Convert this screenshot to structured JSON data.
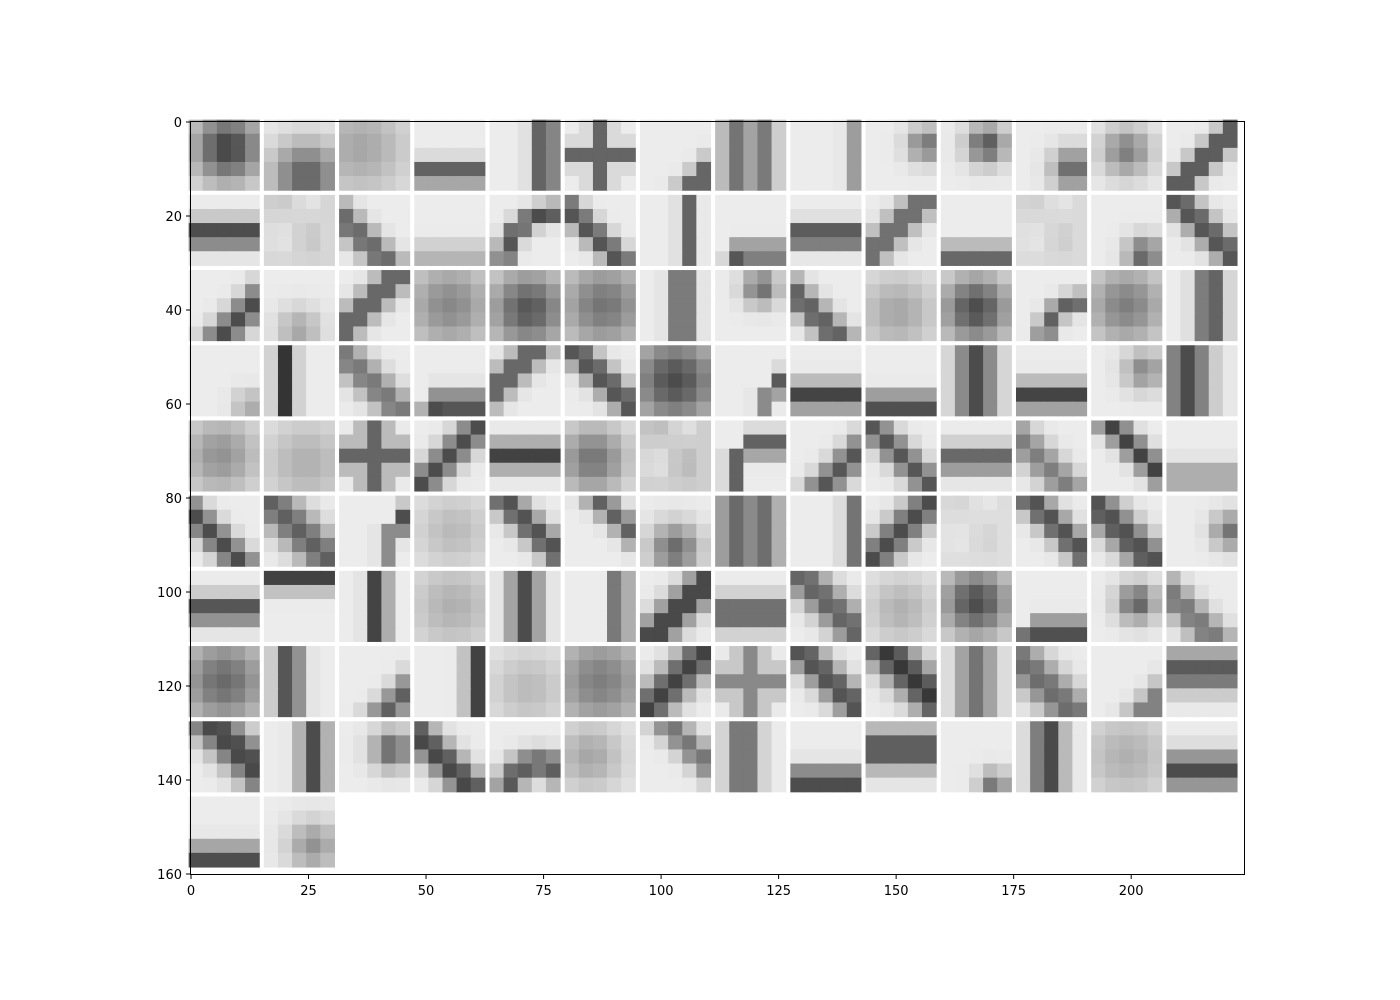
{
  "chart_data": {
    "type": "heatmap",
    "title": "",
    "xlabel": "",
    "ylabel": "",
    "xlim": [
      0,
      224
    ],
    "ylim": [
      160,
      0
    ],
    "xticks": [
      "0",
      "25",
      "50",
      "75",
      "100",
      "125",
      "150",
      "175",
      "200"
    ],
    "yticks": [
      "0",
      "20",
      "40",
      "60",
      "80",
      "100",
      "120",
      "140",
      "160"
    ],
    "grid": false,
    "colormap": "gray_r",
    "grid_layout": {
      "rows": 10,
      "cols": 14,
      "patch_size": 15,
      "spacing": 1
    },
    "patch_count": 128,
    "patches": [
      {
        "kind": "blob",
        "cx": 0.55,
        "cy": 0.4,
        "r": 0.35,
        "s": 0.85
      },
      {
        "kind": "blob",
        "cx": 0.6,
        "cy": 0.8,
        "r": 0.35,
        "s": 0.7
      },
      {
        "kind": "blob",
        "cx": 0.3,
        "cy": 0.4,
        "r": 0.5,
        "s": 0.35
      },
      {
        "kind": "hbar",
        "p": 0.75,
        "w": 0.12,
        "s": 0.75
      },
      {
        "kind": "vbar",
        "p": 0.78,
        "w": 0.12,
        "s": 0.85
      },
      {
        "kind": "cross",
        "p": 0.5,
        "w": 0.1,
        "s": 0.75
      },
      {
        "kind": "diag",
        "dir": 1,
        "p": 0.85,
        "w": 0.12,
        "s": 0.8
      },
      {
        "kind": "stripes",
        "w": 0.15,
        "s": 0.6
      },
      {
        "kind": "vbar",
        "p": 0.95,
        "w": 0.1,
        "s": 0.45
      },
      {
        "kind": "blob",
        "cx": 0.85,
        "cy": 0.35,
        "r": 0.18,
        "s": 0.6
      },
      {
        "kind": "blob",
        "cx": 0.65,
        "cy": 0.35,
        "r": 0.2,
        "s": 0.75
      },
      {
        "kind": "blob",
        "cx": 0.8,
        "cy": 0.7,
        "r": 0.2,
        "s": 0.7
      },
      {
        "kind": "blob",
        "cx": 0.5,
        "cy": 0.45,
        "r": 0.25,
        "s": 0.55
      },
      {
        "kind": "diag",
        "dir": 1,
        "p": 0.55,
        "w": 0.12,
        "s": 0.85
      },
      {
        "kind": "hbar",
        "p": 0.55,
        "w": 0.14,
        "s": 0.85
      },
      {
        "kind": "flat",
        "s": 0.18
      },
      {
        "kind": "diag",
        "dir": -1,
        "p": 0.3,
        "w": 0.14,
        "s": 0.7
      },
      {
        "kind": "hbar",
        "p": 0.85,
        "w": 0.12,
        "s": 0.3
      },
      {
        "kind": "arc",
        "cx": 0.95,
        "cy": 1.0,
        "r": 0.75,
        "w": 0.1,
        "s": 0.8
      },
      {
        "kind": "diag",
        "dir": -1,
        "p": 0.4,
        "w": 0.12,
        "s": 0.8
      },
      {
        "kind": "vbar",
        "p": 0.68,
        "w": 0.08,
        "s": 0.7
      },
      {
        "kind": "corner",
        "x": 0.3,
        "y": 0.82,
        "w": 0.1,
        "s": 0.75
      },
      {
        "kind": "hbar",
        "p": 0.58,
        "w": 0.12,
        "s": 0.9
      },
      {
        "kind": "diag",
        "dir": 1,
        "p": 0.45,
        "w": 0.14,
        "s": 0.7
      },
      {
        "kind": "hbar",
        "p": 0.85,
        "w": 0.1,
        "s": 0.75
      },
      {
        "kind": "flat",
        "s": 0.15
      },
      {
        "kind": "blob",
        "cx": 0.75,
        "cy": 0.85,
        "r": 0.18,
        "s": 0.7
      },
      {
        "kind": "diag",
        "dir": -1,
        "p": 0.55,
        "w": 0.14,
        "s": 0.8
      },
      {
        "kind": "diag",
        "dir": 1,
        "p": 0.7,
        "w": 0.14,
        "s": 0.8
      },
      {
        "kind": "blob",
        "cx": 0.5,
        "cy": 0.85,
        "r": 0.22,
        "s": 0.35
      },
      {
        "kind": "diag",
        "dir": 1,
        "p": 0.45,
        "w": 0.14,
        "s": 0.75
      },
      {
        "kind": "blob",
        "cx": 0.5,
        "cy": 0.5,
        "r": 0.45,
        "s": 0.5
      },
      {
        "kind": "blob",
        "cx": 0.55,
        "cy": 0.55,
        "r": 0.4,
        "s": 0.75
      },
      {
        "kind": "blob",
        "cx": 0.55,
        "cy": 0.5,
        "r": 0.45,
        "s": 0.6
      },
      {
        "kind": "vbar",
        "p": 0.6,
        "w": 0.12,
        "s": 0.8
      },
      {
        "kind": "blob",
        "cx": 0.65,
        "cy": 0.25,
        "r": 0.18,
        "s": 0.65
      },
      {
        "kind": "diag",
        "dir": -1,
        "p": 0.3,
        "w": 0.14,
        "s": 0.75
      },
      {
        "kind": "blob",
        "cx": 0.45,
        "cy": 0.6,
        "r": 0.4,
        "s": 0.35
      },
      {
        "kind": "blob",
        "cx": 0.5,
        "cy": 0.55,
        "r": 0.35,
        "s": 0.8
      },
      {
        "kind": "arc",
        "cx": 0.95,
        "cy": 1.0,
        "r": 0.55,
        "w": 0.1,
        "s": 0.7
      },
      {
        "kind": "blob",
        "cx": 0.5,
        "cy": 0.5,
        "r": 0.4,
        "s": 0.55
      },
      {
        "kind": "vbar",
        "p": 0.62,
        "w": 0.14,
        "s": 0.8
      },
      {
        "kind": "blob",
        "cx": 0.85,
        "cy": 0.85,
        "r": 0.15,
        "s": 0.35
      },
      {
        "kind": "vbar",
        "p": 0.3,
        "w": 0.1,
        "s": 0.95
      },
      {
        "kind": "diag",
        "dir": -1,
        "p": 0.45,
        "w": 0.16,
        "s": 0.6
      },
      {
        "kind": "corner",
        "x": 0.3,
        "y": 0.85,
        "w": 0.14,
        "s": 0.8
      },
      {
        "kind": "diag",
        "dir": 1,
        "p": 0.35,
        "w": 0.14,
        "s": 0.75
      },
      {
        "kind": "diag",
        "dir": -1,
        "p": 0.55,
        "w": 0.14,
        "s": 0.8
      },
      {
        "kind": "blob",
        "cx": 0.5,
        "cy": 0.5,
        "r": 0.45,
        "s": 0.8
      },
      {
        "kind": "corner",
        "x": 0.82,
        "y": 0.55,
        "w": 0.12,
        "s": 0.8
      },
      {
        "kind": "hbar",
        "p": 0.72,
        "w": 0.14,
        "s": 0.85
      },
      {
        "kind": "hbar",
        "p": 0.85,
        "w": 0.12,
        "s": 0.85
      },
      {
        "kind": "vbar",
        "p": 0.5,
        "w": 0.2,
        "s": 0.8
      },
      {
        "kind": "hbar",
        "p": 0.72,
        "w": 0.14,
        "s": 0.85
      },
      {
        "kind": "blob",
        "cx": 0.75,
        "cy": 0.35,
        "r": 0.2,
        "s": 0.5
      },
      {
        "kind": "vbar",
        "p": 0.3,
        "w": 0.22,
        "s": 0.8
      },
      {
        "kind": "blob",
        "cx": 0.45,
        "cy": 0.5,
        "r": 0.4,
        "s": 0.45
      },
      {
        "kind": "blob",
        "cx": 0.6,
        "cy": 0.6,
        "r": 0.45,
        "s": 0.3
      },
      {
        "kind": "cross",
        "p": 0.5,
        "w": 0.14,
        "s": 0.75
      },
      {
        "kind": "diag",
        "dir": 1,
        "p": 0.5,
        "w": 0.14,
        "s": 0.8
      },
      {
        "kind": "hbar",
        "p": 0.5,
        "w": 0.14,
        "s": 0.85
      },
      {
        "kind": "blob",
        "cx": 0.4,
        "cy": 0.55,
        "r": 0.35,
        "s": 0.6
      },
      {
        "kind": "flat",
        "s": 0.25
      },
      {
        "kind": "corner",
        "x": 0.35,
        "y": 0.35,
        "w": 0.12,
        "s": 0.75
      },
      {
        "kind": "diag",
        "dir": 1,
        "p": 0.7,
        "w": 0.14,
        "s": 0.75
      },
      {
        "kind": "diag",
        "dir": -1,
        "p": 0.5,
        "w": 0.14,
        "s": 0.75
      },
      {
        "kind": "hbar",
        "p": 0.55,
        "w": 0.14,
        "s": 0.7
      },
      {
        "kind": "diag",
        "dir": -1,
        "p": 0.35,
        "w": 0.16,
        "s": 0.55
      },
      {
        "kind": "diag",
        "dir": -1,
        "p": 0.65,
        "w": 0.12,
        "s": 0.85
      },
      {
        "kind": "hbar",
        "p": 0.8,
        "w": 0.14,
        "s": 0.4
      },
      {
        "kind": "diag",
        "dir": -1,
        "p": 0.35,
        "w": 0.14,
        "s": 0.8
      },
      {
        "kind": "diag",
        "dir": -1,
        "p": 0.5,
        "w": 0.2,
        "s": 0.7
      },
      {
        "kind": "corner",
        "x": 0.85,
        "y": 0.35,
        "w": 0.14,
        "s": 0.85
      },
      {
        "kind": "blob",
        "cx": 0.55,
        "cy": 0.5,
        "r": 0.4,
        "s": 0.25
      },
      {
        "kind": "diag",
        "dir": -1,
        "p": 0.6,
        "w": 0.14,
        "s": 0.8
      },
      {
        "kind": "diag",
        "dir": -1,
        "p": 0.8,
        "w": 0.12,
        "s": 0.7
      },
      {
        "kind": "blob",
        "cx": 0.5,
        "cy": 0.75,
        "r": 0.25,
        "s": 0.65
      },
      {
        "kind": "stripes",
        "w": 0.2,
        "s": 0.65
      },
      {
        "kind": "vbar",
        "p": 0.9,
        "w": 0.1,
        "s": 0.6
      },
      {
        "kind": "diag",
        "dir": 1,
        "p": 0.5,
        "w": 0.16,
        "s": 0.8
      },
      {
        "kind": "flat",
        "s": 0.12
      },
      {
        "kind": "diag",
        "dir": -1,
        "p": 0.6,
        "w": 0.14,
        "s": 0.8
      },
      {
        "kind": "diag",
        "dir": -1,
        "p": 0.45,
        "w": 0.18,
        "s": 0.8
      },
      {
        "kind": "blob",
        "cx": 0.9,
        "cy": 0.5,
        "r": 0.18,
        "s": 0.6
      },
      {
        "kind": "hbar",
        "p": 0.55,
        "w": 0.14,
        "s": 0.8
      },
      {
        "kind": "hbar",
        "p": 0.1,
        "w": 0.12,
        "s": 0.85
      },
      {
        "kind": "vbar",
        "p": 0.55,
        "w": 0.1,
        "s": 0.95
      },
      {
        "kind": "blob",
        "cx": 0.55,
        "cy": 0.5,
        "r": 0.45,
        "s": 0.3
      },
      {
        "kind": "vbar",
        "p": 0.5,
        "w": 0.16,
        "s": 0.8
      },
      {
        "kind": "vbar",
        "p": 0.78,
        "w": 0.08,
        "s": 0.95
      },
      {
        "kind": "diag",
        "dir": 1,
        "p": 0.55,
        "w": 0.16,
        "s": 0.9
      },
      {
        "kind": "hbar",
        "p": 0.6,
        "w": 0.16,
        "s": 0.75
      },
      {
        "kind": "diag",
        "dir": -1,
        "p": 0.55,
        "w": 0.18,
        "s": 0.7
      },
      {
        "kind": "blob",
        "cx": 0.5,
        "cy": 0.55,
        "r": 0.35,
        "s": 0.3
      },
      {
        "kind": "blob",
        "cx": 0.5,
        "cy": 0.45,
        "r": 0.35,
        "s": 0.8
      },
      {
        "kind": "corner",
        "x": 0.2,
        "y": 0.85,
        "w": 0.12,
        "s": 0.85
      },
      {
        "kind": "blob",
        "cx": 0.65,
        "cy": 0.45,
        "r": 0.2,
        "s": 0.7
      },
      {
        "kind": "diag",
        "dir": -1,
        "p": 0.3,
        "w": 0.16,
        "s": 0.6
      },
      {
        "kind": "blob",
        "cx": 0.5,
        "cy": 0.5,
        "r": 0.45,
        "s": 0.65
      },
      {
        "kind": "vbar",
        "p": 0.35,
        "w": 0.14,
        "s": 0.8
      },
      {
        "kind": "diag",
        "dir": 1,
        "p": 0.8,
        "w": 0.14,
        "s": 0.7
      },
      {
        "kind": "corner",
        "x": 0.9,
        "y": 0.15,
        "w": 0.12,
        "s": 0.85
      },
      {
        "kind": "blob",
        "cx": 0.55,
        "cy": 0.6,
        "r": 0.4,
        "s": 0.25
      },
      {
        "kind": "blob",
        "cx": 0.5,
        "cy": 0.5,
        "r": 0.5,
        "s": 0.55
      },
      {
        "kind": "diag",
        "dir": 1,
        "p": 0.5,
        "w": 0.18,
        "s": 0.85
      },
      {
        "kind": "cross",
        "p": 0.5,
        "w": 0.14,
        "s": 0.55
      },
      {
        "kind": "diag",
        "dir": -1,
        "p": 0.55,
        "w": 0.16,
        "s": 0.8
      },
      {
        "kind": "diag",
        "dir": -1,
        "p": 0.65,
        "w": 0.2,
        "s": 0.9
      },
      {
        "kind": "vbar",
        "p": 0.5,
        "w": 0.2,
        "s": 0.6
      },
      {
        "kind": "diag",
        "dir": -1,
        "p": 0.4,
        "w": 0.2,
        "s": 0.65
      },
      {
        "kind": "diag",
        "dir": 1,
        "p": 0.85,
        "w": 0.14,
        "s": 0.6
      },
      {
        "kind": "hbar",
        "p": 0.35,
        "w": 0.2,
        "s": 0.75
      },
      {
        "kind": "diag",
        "dir": -1,
        "p": 0.7,
        "w": 0.2,
        "s": 0.85
      },
      {
        "kind": "vbar",
        "p": 0.7,
        "w": 0.14,
        "s": 0.8
      },
      {
        "kind": "blob",
        "cx": 0.75,
        "cy": 0.4,
        "r": 0.2,
        "s": 0.7
      },
      {
        "kind": "diag",
        "dir": -1,
        "p": 0.4,
        "w": 0.16,
        "s": 0.85
      },
      {
        "kind": "arc",
        "cx": 0.7,
        "cy": 1.05,
        "r": 0.45,
        "w": 0.14,
        "s": 0.75
      },
      {
        "kind": "blob",
        "cx": 0.35,
        "cy": 0.5,
        "r": 0.35,
        "s": 0.35
      },
      {
        "kind": "diag",
        "dir": -1,
        "p": 0.75,
        "w": 0.14,
        "s": 0.6
      },
      {
        "kind": "vbar",
        "p": 0.4,
        "w": 0.16,
        "s": 0.7
      },
      {
        "kind": "hbar",
        "p": 0.85,
        "w": 0.14,
        "s": 0.85
      },
      {
        "kind": "hbar",
        "p": 0.4,
        "w": 0.2,
        "s": 0.8
      },
      {
        "kind": "blob",
        "cx": 0.75,
        "cy": 0.9,
        "r": 0.15,
        "s": 0.6
      },
      {
        "kind": "vbar",
        "p": 0.45,
        "w": 0.16,
        "s": 0.85
      },
      {
        "kind": "blob",
        "cx": 0.5,
        "cy": 0.5,
        "r": 0.45,
        "s": 0.3
      },
      {
        "kind": "hbar",
        "p": 0.7,
        "w": 0.18,
        "s": 0.8
      },
      {
        "kind": "hbar",
        "p": 0.88,
        "w": 0.14,
        "s": 0.8
      },
      {
        "kind": "blob",
        "cx": 0.7,
        "cy": 0.7,
        "r": 0.25,
        "s": 0.45
      }
    ]
  }
}
